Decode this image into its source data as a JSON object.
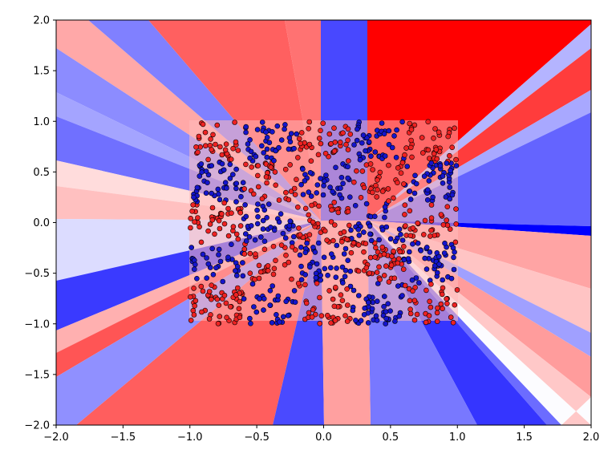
{
  "chart_data": {
    "type": "scatter",
    "title": "",
    "xlabel": "",
    "ylabel": "",
    "xlim": [
      -2.0,
      2.0
    ],
    "ylim": [
      -2.0,
      2.0
    ],
    "grid": false,
    "x_ticks": [
      "−2.0",
      "−1.5",
      "−1.0",
      "−0.5",
      "0.0",
      "0.5",
      "1.0",
      "1.5",
      "2.0"
    ],
    "y_ticks": [
      "−2.0",
      "−1.5",
      "−1.0",
      "−0.5",
      "0.0",
      "0.5",
      "1.0",
      "1.5",
      "2.0"
    ],
    "x_tick_values": [
      -2.0,
      -1.5,
      -1.0,
      -0.5,
      0.0,
      0.5,
      1.0,
      1.5,
      2.0
    ],
    "y_tick_values": [
      -2.0,
      -1.5,
      -1.0,
      -0.5,
      0.0,
      0.5,
      1.0,
      1.5,
      2.0
    ],
    "background": "decision-region contour (bwr colormap)",
    "points_domain": {
      "x": [
        -1.0,
        1.0
      ],
      "y": [
        -1.0,
        1.0
      ]
    },
    "checkerboard_cells_x": [
      -1.0,
      -0.6,
      -0.2,
      0.2,
      0.6,
      1.0
    ],
    "checkerboard_cells_y": [
      -1.0,
      -0.6,
      -0.2,
      0.2,
      0.6,
      1.0
    ],
    "series": [
      {
        "class": "red",
        "color": "#ee2222"
      },
      {
        "class": "blue",
        "color": "#1515cc"
      }
    ],
    "point_edge_color": "#000000"
  }
}
